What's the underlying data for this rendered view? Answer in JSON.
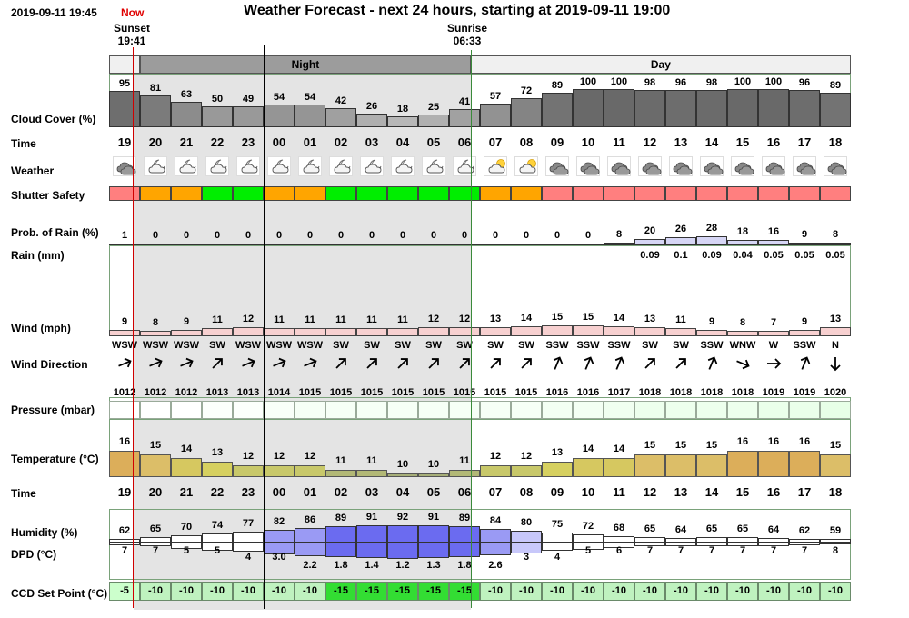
{
  "header": {
    "timestamp": "2019-09-11 19:45",
    "now_label": "Now",
    "title": "Weather Forecast - next 24 hours, starting at 2019-09-11 19:00",
    "sunset_label": "Sunset",
    "sunset_time": "19:41",
    "sunrise_label": "Sunrise",
    "sunrise_time": "06:33"
  },
  "bands": {
    "night": "Night",
    "day": "Day"
  },
  "labels": {
    "cloud": "Cloud Cover (%)",
    "time": "Time",
    "weather": "Weather",
    "shutter": "Shutter Safety",
    "rain_prob": "Prob. of Rain (%)",
    "rain_mm": "Rain (mm)",
    "wind": "Wind (mph)",
    "wind_dir": "Wind Direction",
    "pressure": "Pressure (mbar)",
    "temperature": "Temperature (°C)",
    "time2": "Time",
    "humidity": "Humidity (%)",
    "dpd": "DPD (°C)",
    "ccd": "CCD Set Point (°C)"
  },
  "hours": [
    "19",
    "20",
    "21",
    "22",
    "23",
    "00",
    "01",
    "02",
    "03",
    "04",
    "05",
    "06",
    "07",
    "08",
    "09",
    "10",
    "11",
    "12",
    "13",
    "14",
    "15",
    "16",
    "17",
    "18"
  ],
  "cloud_cover": [
    95,
    81,
    63,
    50,
    49,
    54,
    54,
    42,
    26,
    18,
    25,
    41,
    57,
    72,
    89,
    100,
    100,
    98,
    96,
    98,
    100,
    100,
    96,
    89
  ],
  "weather_icons": [
    "cloudy",
    "partly-cloudy-night",
    "partly-cloudy-night",
    "partly-cloudy-night",
    "partly-cloudy-night",
    "partly-cloudy-night",
    "partly-cloudy-night",
    "partly-cloudy-night",
    "partly-cloudy-night",
    "partly-cloudy-night",
    "partly-cloudy-night",
    "partly-cloudy-night",
    "partly-cloudy-day",
    "partly-cloudy-day",
    "cloudy",
    "cloudy",
    "cloudy",
    "cloudy",
    "cloudy",
    "cloudy",
    "cloudy",
    "cloudy",
    "cloudy",
    "cloudy"
  ],
  "shutter_safety": [
    "unsafe",
    "marginal",
    "marginal",
    "safe",
    "safe",
    "marginal",
    "marginal",
    "safe",
    "safe",
    "safe",
    "safe",
    "safe",
    "marginal",
    "marginal",
    "unsafe",
    "unsafe",
    "unsafe",
    "unsafe",
    "unsafe",
    "unsafe",
    "unsafe",
    "unsafe",
    "unsafe",
    "unsafe"
  ],
  "shutter_colors": {
    "safe": "#00ee00",
    "marginal": "#ffa500",
    "unsafe": "#ff7f7f"
  },
  "rain_prob": [
    "1",
    "0",
    "0",
    "0",
    "0",
    "0",
    "0",
    "0",
    "0",
    "0",
    "0",
    "0",
    "0",
    "0",
    "0",
    "0",
    "8",
    "20",
    "26",
    "28",
    "18",
    "16",
    "9",
    "8"
  ],
  "rain_mm": [
    "",
    "",
    "",
    "",
    "",
    "",
    "",
    "",
    "",
    "",
    "",
    "",
    "",
    "",
    "",
    "",
    "",
    "0.09",
    "0.1",
    "0.09",
    "0.04",
    "0.05",
    "0.05",
    "0.05"
  ],
  "wind_mph": [
    9,
    8,
    9,
    11,
    12,
    11,
    11,
    11,
    11,
    11,
    12,
    12,
    13,
    14,
    15,
    15,
    14,
    13,
    11,
    9,
    8,
    7,
    9,
    13
  ],
  "wind_dir": [
    "WSW",
    "WSW",
    "WSW",
    "SW",
    "WSW",
    "WSW",
    "WSW",
    "SW",
    "SW",
    "SW",
    "SW",
    "SW",
    "SW",
    "SW",
    "SSW",
    "SSW",
    "SSW",
    "SW",
    "SW",
    "SSW",
    "WNW",
    "W",
    "SSW",
    "N"
  ],
  "wind_arrow_deg": [
    67.5,
    67.5,
    67.5,
    45,
    67.5,
    67.5,
    67.5,
    45,
    45,
    45,
    45,
    45,
    45,
    45,
    22.5,
    22.5,
    22.5,
    45,
    45,
    22.5,
    112.5,
    90,
    22.5,
    180
  ],
  "pressure": [
    "1012",
    "1012",
    "1012",
    "1013",
    "1013",
    "1014",
    "1015",
    "1015",
    "1015",
    "1015",
    "1015",
    "1015",
    "1015",
    "1015",
    "1016",
    "1016",
    "1017",
    "1018",
    "1018",
    "1018",
    "1018",
    "1019",
    "1019",
    "1020"
  ],
  "temperature": [
    16,
    15,
    14,
    13,
    12,
    12,
    12,
    11,
    11,
    10,
    10,
    11,
    12,
    12,
    13,
    14,
    14,
    15,
    15,
    15,
    16,
    16,
    16,
    15
  ],
  "humidity": [
    62,
    65,
    70,
    74,
    77,
    82,
    86,
    89,
    91,
    92,
    91,
    89,
    84,
    80,
    75,
    72,
    68,
    65,
    64,
    65,
    65,
    64,
    62,
    59
  ],
  "dpd": [
    "7",
    "7",
    "5",
    "5",
    "4",
    "3.0",
    "2.2",
    "1.8",
    "1.4",
    "1.2",
    "1.3",
    "1.8",
    "2.6",
    "3",
    "4",
    "5",
    "6",
    "7",
    "7",
    "7",
    "7",
    "7",
    "7",
    "8"
  ],
  "ccd_setpoint": [
    "-5",
    "-10",
    "-10",
    "-10",
    "-10",
    "-10",
    "-10",
    "-15",
    "-15",
    "-15",
    "-15",
    "-15",
    "-10",
    "-10",
    "-10",
    "-10",
    "-10",
    "-10",
    "-10",
    "-10",
    "-10",
    "-10",
    "-10",
    "-10"
  ]
}
